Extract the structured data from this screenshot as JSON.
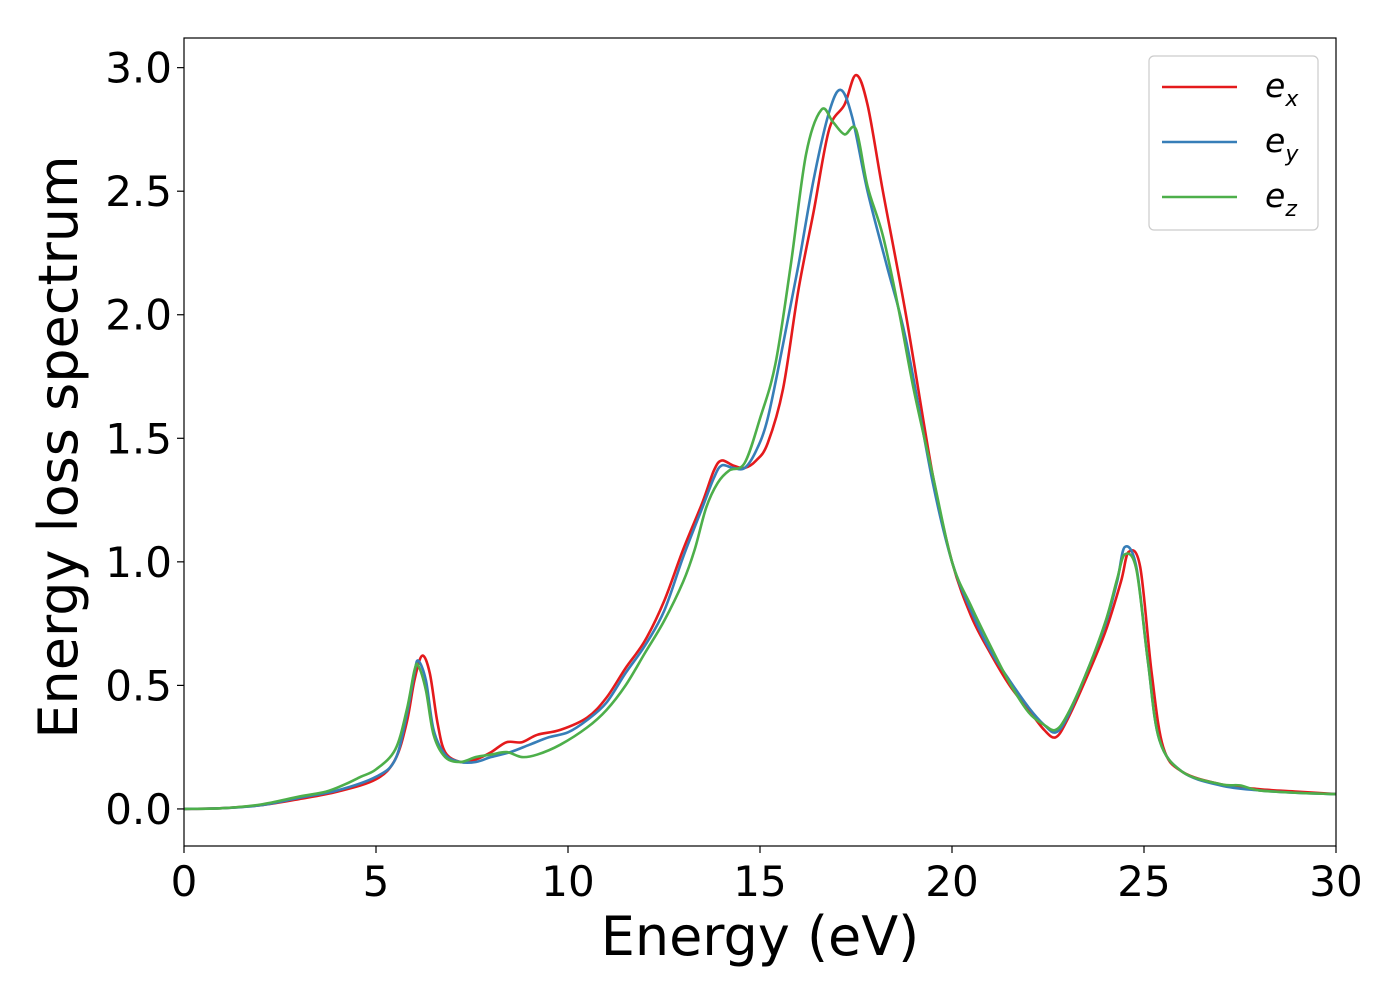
{
  "chart_data": {
    "type": "line",
    "title": "",
    "xlabel": "Energy (eV)",
    "ylabel": "Energy loss spectrum",
    "xlim": [
      0,
      30
    ],
    "ylim": [
      -0.15,
      3.12
    ],
    "xticks": [
      0,
      5,
      10,
      15,
      20,
      25,
      30
    ],
    "xtick_labels": [
      "0",
      "5",
      "10",
      "15",
      "20",
      "25",
      "30"
    ],
    "yticks": [
      0.0,
      0.5,
      1.0,
      1.5,
      2.0,
      2.5,
      3.0
    ],
    "ytick_labels": [
      "0.0",
      "0.5",
      "1.0",
      "1.5",
      "2.0",
      "2.5",
      "3.0"
    ],
    "grid": false,
    "legend_position": "top-right",
    "series": [
      {
        "name": "e_x",
        "label_main": "e",
        "label_sub": "x",
        "color": "#e41a1c",
        "points": [
          [
            0,
            0
          ],
          [
            1,
            0.003
          ],
          [
            2,
            0.015
          ],
          [
            3,
            0.04
          ],
          [
            4,
            0.07
          ],
          [
            5,
            0.12
          ],
          [
            5.5,
            0.2
          ],
          [
            5.8,
            0.35
          ],
          [
            6.0,
            0.52
          ],
          [
            6.2,
            0.62
          ],
          [
            6.4,
            0.55
          ],
          [
            6.6,
            0.35
          ],
          [
            6.8,
            0.23
          ],
          [
            7.2,
            0.19
          ],
          [
            7.6,
            0.2
          ],
          [
            8.0,
            0.23
          ],
          [
            8.4,
            0.27
          ],
          [
            8.8,
            0.27
          ],
          [
            9.2,
            0.3
          ],
          [
            9.8,
            0.32
          ],
          [
            10.5,
            0.37
          ],
          [
            11,
            0.45
          ],
          [
            11.5,
            0.57
          ],
          [
            12,
            0.68
          ],
          [
            12.5,
            0.84
          ],
          [
            13,
            1.05
          ],
          [
            13.5,
            1.24
          ],
          [
            13.8,
            1.37
          ],
          [
            14.0,
            1.41
          ],
          [
            14.3,
            1.39
          ],
          [
            14.6,
            1.38
          ],
          [
            14.9,
            1.41
          ],
          [
            15.2,
            1.48
          ],
          [
            15.6,
            1.7
          ],
          [
            16,
            2.1
          ],
          [
            16.4,
            2.42
          ],
          [
            16.8,
            2.75
          ],
          [
            17.2,
            2.85
          ],
          [
            17.5,
            2.97
          ],
          [
            17.8,
            2.85
          ],
          [
            18.2,
            2.5
          ],
          [
            18.8,
            2.0
          ],
          [
            19.5,
            1.35
          ],
          [
            20,
            1.0
          ],
          [
            20.5,
            0.78
          ],
          [
            21,
            0.63
          ],
          [
            21.5,
            0.5
          ],
          [
            22,
            0.4
          ],
          [
            22.4,
            0.32
          ],
          [
            22.7,
            0.29
          ],
          [
            23,
            0.36
          ],
          [
            23.5,
            0.53
          ],
          [
            24,
            0.72
          ],
          [
            24.4,
            0.92
          ],
          [
            24.6,
            1.04
          ],
          [
            24.9,
            0.98
          ],
          [
            25.2,
            0.55
          ],
          [
            25.5,
            0.25
          ],
          [
            26,
            0.15
          ],
          [
            27,
            0.1
          ],
          [
            28,
            0.08
          ],
          [
            29,
            0.07
          ],
          [
            30,
            0.06
          ]
        ]
      },
      {
        "name": "e_y",
        "label_main": "e",
        "label_sub": "y",
        "color": "#377eb8",
        "points": [
          [
            0,
            0
          ],
          [
            1,
            0.003
          ],
          [
            2,
            0.015
          ],
          [
            3,
            0.045
          ],
          [
            4,
            0.075
          ],
          [
            5,
            0.13
          ],
          [
            5.5,
            0.2
          ],
          [
            5.8,
            0.38
          ],
          [
            6.0,
            0.55
          ],
          [
            6.1,
            0.6
          ],
          [
            6.3,
            0.52
          ],
          [
            6.5,
            0.32
          ],
          [
            6.8,
            0.22
          ],
          [
            7.2,
            0.19
          ],
          [
            7.6,
            0.19
          ],
          [
            8.0,
            0.21
          ],
          [
            8.5,
            0.23
          ],
          [
            9.0,
            0.26
          ],
          [
            9.5,
            0.29
          ],
          [
            10,
            0.31
          ],
          [
            10.5,
            0.36
          ],
          [
            11,
            0.43
          ],
          [
            11.5,
            0.55
          ],
          [
            12,
            0.66
          ],
          [
            12.5,
            0.8
          ],
          [
            13,
            1.02
          ],
          [
            13.5,
            1.22
          ],
          [
            13.8,
            1.34
          ],
          [
            14.0,
            1.39
          ],
          [
            14.3,
            1.38
          ],
          [
            14.6,
            1.38
          ],
          [
            14.9,
            1.45
          ],
          [
            15.2,
            1.58
          ],
          [
            15.6,
            1.88
          ],
          [
            16,
            2.2
          ],
          [
            16.4,
            2.55
          ],
          [
            16.8,
            2.82
          ],
          [
            17.1,
            2.91
          ],
          [
            17.4,
            2.8
          ],
          [
            17.8,
            2.5
          ],
          [
            18.3,
            2.2
          ],
          [
            18.8,
            1.9
          ],
          [
            19.5,
            1.32
          ],
          [
            20,
            1.0
          ],
          [
            20.5,
            0.8
          ],
          [
            21,
            0.64
          ],
          [
            21.5,
            0.52
          ],
          [
            22,
            0.41
          ],
          [
            22.4,
            0.34
          ],
          [
            22.7,
            0.31
          ],
          [
            23,
            0.37
          ],
          [
            23.5,
            0.55
          ],
          [
            24,
            0.75
          ],
          [
            24.3,
            0.92
          ],
          [
            24.5,
            1.06
          ],
          [
            24.8,
            0.98
          ],
          [
            25.1,
            0.6
          ],
          [
            25.4,
            0.28
          ],
          [
            26,
            0.15
          ],
          [
            27,
            0.095
          ],
          [
            28,
            0.075
          ],
          [
            29,
            0.065
          ],
          [
            30,
            0.06
          ]
        ]
      },
      {
        "name": "e_z",
        "label_main": "e",
        "label_sub": "z",
        "color": "#4daf4a",
        "points": [
          [
            0,
            0
          ],
          [
            1,
            0.003
          ],
          [
            2,
            0.018
          ],
          [
            3,
            0.05
          ],
          [
            3.7,
            0.07
          ],
          [
            4.2,
            0.1
          ],
          [
            4.6,
            0.13
          ],
          [
            5,
            0.16
          ],
          [
            5.5,
            0.24
          ],
          [
            5.8,
            0.4
          ],
          [
            6.0,
            0.56
          ],
          [
            6.1,
            0.58
          ],
          [
            6.3,
            0.48
          ],
          [
            6.5,
            0.3
          ],
          [
            6.8,
            0.21
          ],
          [
            7.2,
            0.19
          ],
          [
            7.6,
            0.21
          ],
          [
            8.0,
            0.22
          ],
          [
            8.4,
            0.23
          ],
          [
            8.8,
            0.21
          ],
          [
            9.2,
            0.22
          ],
          [
            9.8,
            0.26
          ],
          [
            10.5,
            0.33
          ],
          [
            11,
            0.4
          ],
          [
            11.5,
            0.5
          ],
          [
            12,
            0.63
          ],
          [
            12.5,
            0.76
          ],
          [
            13,
            0.92
          ],
          [
            13.3,
            1.05
          ],
          [
            13.6,
            1.22
          ],
          [
            13.9,
            1.32
          ],
          [
            14.2,
            1.37
          ],
          [
            14.6,
            1.4
          ],
          [
            15.0,
            1.58
          ],
          [
            15.4,
            1.8
          ],
          [
            15.8,
            2.2
          ],
          [
            16.2,
            2.65
          ],
          [
            16.6,
            2.83
          ],
          [
            16.9,
            2.78
          ],
          [
            17.2,
            2.73
          ],
          [
            17.5,
            2.75
          ],
          [
            17.8,
            2.52
          ],
          [
            18.2,
            2.32
          ],
          [
            18.6,
            2.03
          ],
          [
            19.0,
            1.7
          ],
          [
            19.5,
            1.35
          ],
          [
            20,
            1.0
          ],
          [
            20.5,
            0.82
          ],
          [
            21,
            0.66
          ],
          [
            21.5,
            0.51
          ],
          [
            22,
            0.39
          ],
          [
            22.4,
            0.34
          ],
          [
            22.7,
            0.32
          ],
          [
            23,
            0.38
          ],
          [
            23.5,
            0.55
          ],
          [
            24,
            0.76
          ],
          [
            24.3,
            0.93
          ],
          [
            24.5,
            1.03
          ],
          [
            24.8,
            0.97
          ],
          [
            25.1,
            0.6
          ],
          [
            25.4,
            0.28
          ],
          [
            26,
            0.15
          ],
          [
            27,
            0.1
          ],
          [
            27.5,
            0.095
          ],
          [
            28,
            0.075
          ],
          [
            29,
            0.065
          ],
          [
            30,
            0.06
          ]
        ]
      }
    ]
  }
}
